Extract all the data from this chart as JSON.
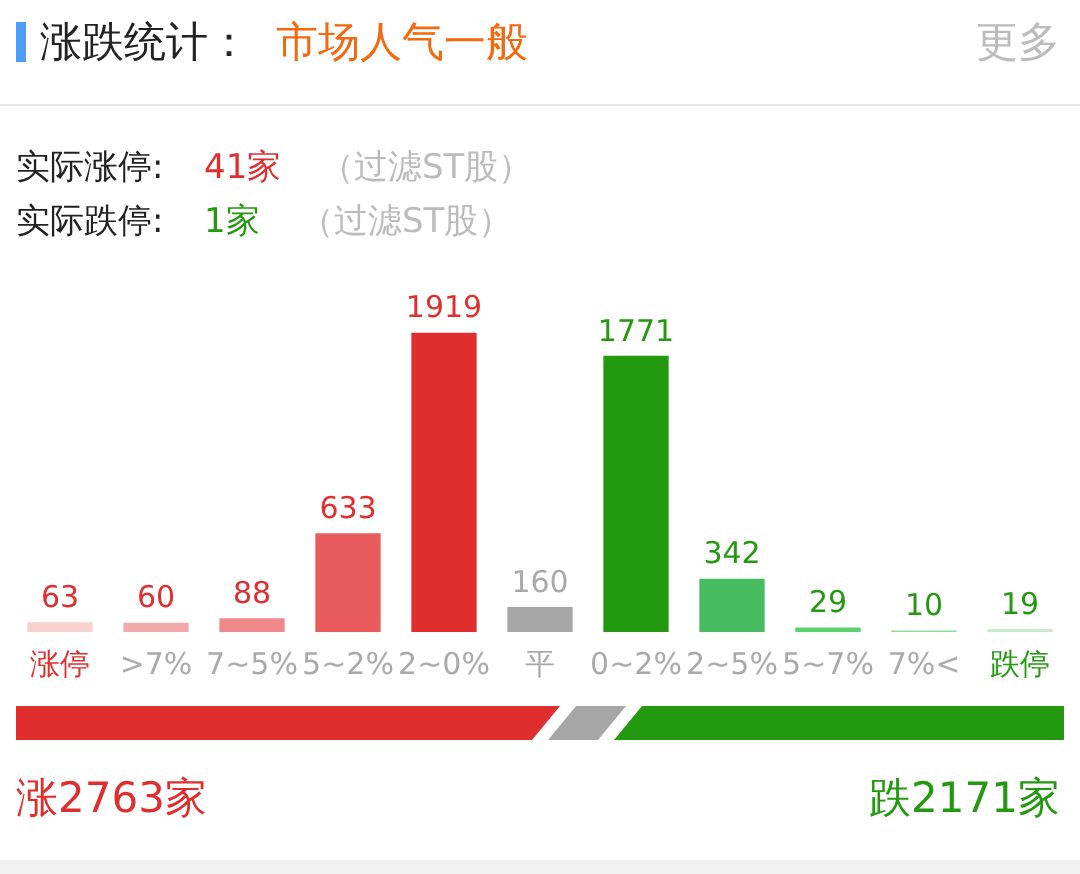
{
  "chart_data": {
    "type": "bar",
    "title": "涨跌统计：",
    "subtitle": "市场人气一般",
    "annotations": [
      "更多",
      "实际涨停:",
      "41家",
      "（过滤ST股）",
      "实际跌停:",
      "1家",
      "（过滤ST股）",
      "涨2763家",
      "跌2171家"
    ],
    "categories": [
      "涨停",
      ">7%",
      "7~5%",
      "5~2%",
      "2~0%",
      "平",
      "0~2%",
      "2~5%",
      "5~7%",
      "7%<",
      "跌停"
    ],
    "values": [
      63,
      60,
      88,
      633,
      1919,
      160,
      1771,
      342,
      29,
      10,
      19
    ],
    "colors": [
      "#f9d0d0",
      "#f2a9a9",
      "#f08a8a",
      "#e85c5c",
      "#e02e2e",
      "#a6a6a6",
      "#22990f",
      "#47bb5f",
      "#5ccf6f",
      "#8fdd9a",
      "#c5eccb"
    ],
    "data_labels": true,
    "grid": false,
    "legend": false,
    "tick_labels": "x"
  }
}
